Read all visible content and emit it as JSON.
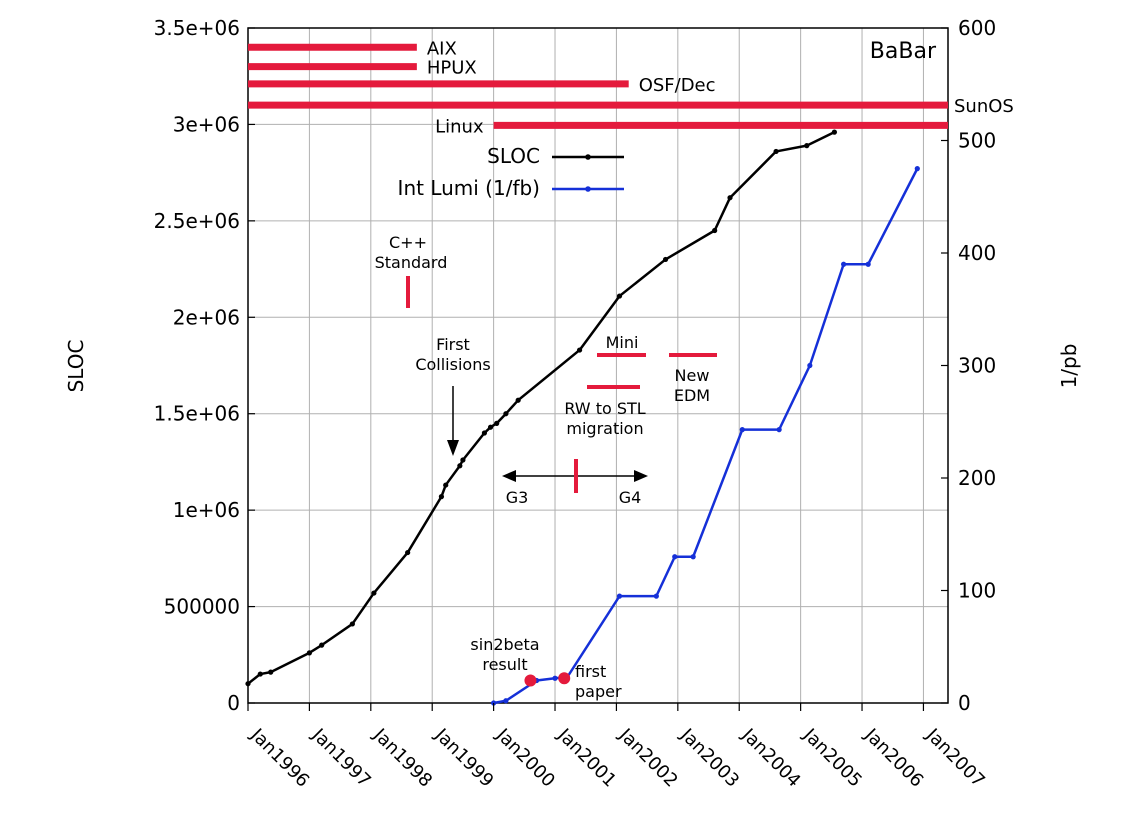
{
  "chart_data": {
    "type": "line",
    "ylabel": "SLOC",
    "y2label": "1/pb",
    "ylim": [
      0,
      3500000
    ],
    "y2lim": [
      0,
      600
    ],
    "yticks": [
      0,
      500000,
      1000000,
      1500000,
      2000000,
      2500000,
      3000000,
      3500000
    ],
    "ytick_labels": [
      "0",
      "500000",
      "1e+06",
      "1.5e+06",
      "2e+06",
      "2.5e+06",
      "3e+06",
      "3.5e+06"
    ],
    "y2ticks": [
      0,
      100,
      200,
      300,
      400,
      500,
      600
    ],
    "y2tick_labels": [
      "0",
      "100",
      "200",
      "300",
      "400",
      "500",
      "600"
    ],
    "xlim": [
      1996.0,
      2007.4
    ],
    "xticks": [
      1996,
      1997,
      1998,
      1999,
      2000,
      2001,
      2002,
      2003,
      2004,
      2005,
      2006,
      2007
    ],
    "xtick_labels": [
      "Jan1996",
      "Jan1997",
      "Jan1998",
      "Jan1999",
      "Jan2000",
      "Jan2001",
      "Jan2002",
      "Jan2003",
      "Jan2004",
      "Jan2005",
      "Jan2006",
      "Jan2007"
    ],
    "grid": true,
    "legend_position": "upper-middle",
    "corner_label": "BaBar",
    "series": [
      {
        "name": "SLOC",
        "axis": "left",
        "color": "#000000",
        "points": [
          [
            1996.0,
            100000
          ],
          [
            1996.2,
            150000
          ],
          [
            1996.37,
            160000
          ],
          [
            1997.0,
            260000
          ],
          [
            1997.2,
            300000
          ],
          [
            1997.7,
            410000
          ],
          [
            1998.05,
            570000
          ],
          [
            1998.6,
            780000
          ],
          [
            1999.15,
            1070000
          ],
          [
            1999.22,
            1130000
          ],
          [
            1999.45,
            1230000
          ],
          [
            1999.5,
            1260000
          ],
          [
            1999.85,
            1400000
          ],
          [
            1999.95,
            1430000
          ],
          [
            2000.05,
            1450000
          ],
          [
            2000.2,
            1500000
          ],
          [
            2000.4,
            1570000
          ],
          [
            2001.4,
            1830000
          ],
          [
            2002.05,
            2110000
          ],
          [
            2002.8,
            2300000
          ],
          [
            2003.6,
            2450000
          ],
          [
            2003.85,
            2620000
          ],
          [
            2004.6,
            2860000
          ],
          [
            2005.1,
            2890000
          ],
          [
            2005.55,
            2960000
          ]
        ]
      },
      {
        "name": "Int Lumi (1/fb)",
        "axis": "right",
        "color": "#1530d8",
        "points": [
          [
            2000.0,
            0
          ],
          [
            2000.2,
            2
          ],
          [
            2000.7,
            20
          ],
          [
            2001.0,
            22
          ],
          [
            2001.2,
            23
          ],
          [
            2002.05,
            95
          ],
          [
            2002.65,
            95
          ],
          [
            2002.95,
            130
          ],
          [
            2003.25,
            130
          ],
          [
            2004.05,
            243
          ],
          [
            2004.65,
            243
          ],
          [
            2005.15,
            300
          ],
          [
            2005.7,
            390
          ],
          [
            2006.1,
            390
          ],
          [
            2006.9,
            475
          ]
        ]
      }
    ],
    "platform_bars": [
      {
        "label": "AIX",
        "start": 1996.0,
        "end": 1998.75,
        "value": 3400000
      },
      {
        "label": "HPUX",
        "start": 1996.0,
        "end": 1998.75,
        "value": 3300000
      },
      {
        "label": "OSF/Dec",
        "start": 1996.0,
        "end": 2002.2,
        "value": 3210000
      },
      {
        "label": "SunOS",
        "start": 1996.0,
        "end": 2007.4,
        "value": 3100000
      },
      {
        "label": "Linux",
        "start": 2000.0,
        "end": 2007.4,
        "value": 2995000
      }
    ],
    "annotations": [
      {
        "lines": [
          "C++",
          "Standard"
        ]
      },
      {
        "lines": [
          "First",
          "Collisions"
        ]
      },
      {
        "lines": [
          "Mini"
        ]
      },
      {
        "lines": [
          "New",
          "EDM"
        ]
      },
      {
        "lines": [
          "RW to STL",
          "migration"
        ]
      },
      {
        "lines": [
          "G3"
        ]
      },
      {
        "lines": [
          "G4"
        ]
      },
      {
        "lines": [
          "sin2beta",
          "result"
        ]
      },
      {
        "lines": [
          "first",
          "paper"
        ]
      }
    ],
    "markers": [
      {
        "label": "sin2beta result",
        "x": 2000.6,
        "value": 20
      },
      {
        "label": "first paper",
        "x": 2001.15,
        "value": 22
      }
    ]
  },
  "colors": {
    "platform_bar": "#e41a3c",
    "grid": "#b0b0b0",
    "axis": "#000000"
  }
}
